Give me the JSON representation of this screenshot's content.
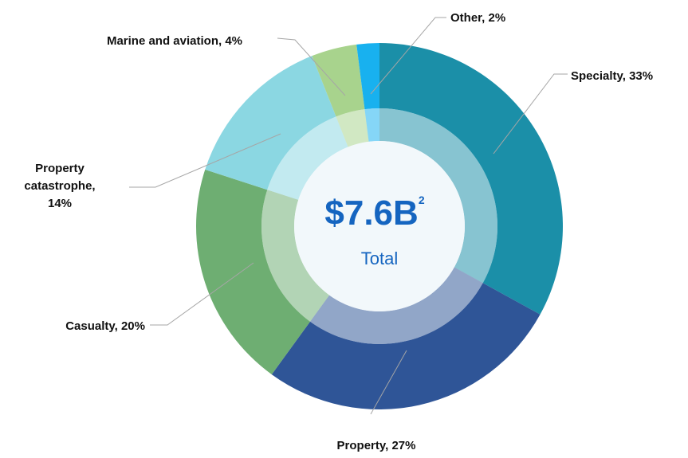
{
  "chart_data": {
    "type": "donut",
    "categories": [
      "Specialty, 33%",
      "Property, 27%",
      "Casualty, 20%",
      "Property catastrophe, 14%",
      "Marine and aviation, 4%",
      "Other, 2%"
    ],
    "values": [
      33,
      27,
      20,
      14,
      4,
      2
    ],
    "colors": [
      "#1b8fa8",
      "#2f5597",
      "#6eae72",
      "#8bd7e2",
      "#a8d38d",
      "#18b1ef"
    ],
    "center_label": "$7.6B",
    "center_footnote": "2",
    "center_subtitle": "Total"
  }
}
